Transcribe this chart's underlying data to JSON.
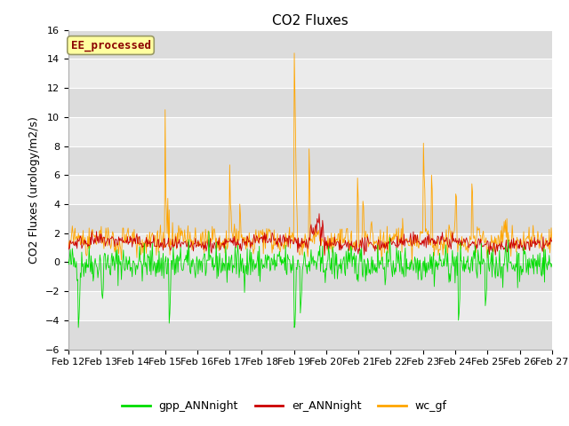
{
  "title": "CO2 Fluxes",
  "ylabel": "CO2 Fluxes (urology/m2/s)",
  "ylim": [
    -6,
    16
  ],
  "yticks": [
    -6,
    -4,
    -2,
    0,
    2,
    4,
    6,
    8,
    10,
    12,
    14,
    16
  ],
  "x_labels": [
    "Feb 12",
    "Feb 13",
    "Feb 14",
    "Feb 15",
    "Feb 16",
    "Feb 17",
    "Feb 18",
    "Feb 19",
    "Feb 20",
    "Feb 21",
    "Feb 22",
    "Feb 23",
    "Feb 24",
    "Feb 25",
    "Feb 26",
    "Feb 27"
  ],
  "annotation_text": "EE_processed",
  "annotation_color": "#8B0000",
  "annotation_bg": "#FFFFA0",
  "annotation_edge": "#999966",
  "gpp_color": "#00DD00",
  "er_color": "#CC0000",
  "wc_color": "#FFA500",
  "legend_labels": [
    "gpp_ANNnight",
    "er_ANNnight",
    "wc_gf"
  ],
  "plot_bg_light": "#EBEBEB",
  "plot_bg_dark": "#DCDCDC",
  "grid_color": "#FFFFFF",
  "n_points": 720,
  "seed": 42,
  "title_fontsize": 11,
  "label_fontsize": 9,
  "tick_fontsize": 8
}
